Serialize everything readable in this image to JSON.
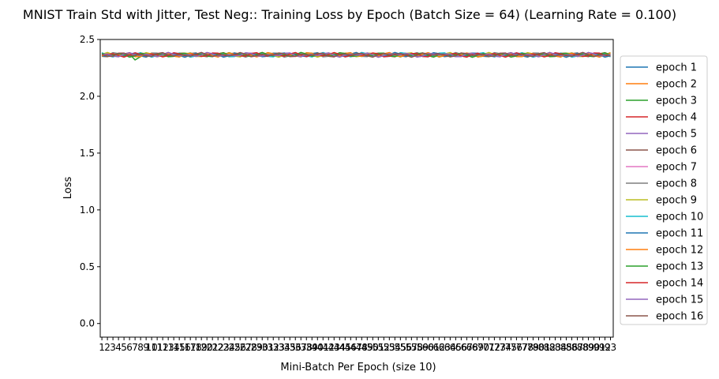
{
  "chart_data": {
    "type": "line",
    "title": "MNIST Train Std with Jitter, Test Neg:: Training Loss by Epoch (Batch Size = 64) (Learning Rate = 0.100)",
    "xlabel": "Mini-Batch Per Epoch (size 10)",
    "ylabel": "Loss",
    "x": [
      1,
      2,
      3,
      4,
      5,
      6,
      7,
      8,
      9,
      10,
      11,
      12,
      13,
      14,
      15,
      16,
      17,
      18,
      19,
      20,
      21,
      22,
      23,
      24,
      25,
      26,
      27,
      28,
      29,
      30,
      31,
      32,
      33,
      34,
      35,
      36,
      37,
      38,
      39,
      40,
      41,
      42,
      43,
      44,
      45,
      46,
      47,
      48,
      49,
      50,
      51,
      52,
      53,
      54,
      55,
      56,
      57,
      58,
      59,
      60,
      61,
      62,
      63,
      64,
      65,
      66,
      67,
      68,
      69,
      70,
      71,
      72,
      73,
      74,
      75,
      76,
      77,
      78,
      79,
      80,
      81,
      82,
      83,
      84,
      85,
      86,
      87,
      88,
      89,
      90,
      91,
      92,
      93
    ],
    "xlim": [
      0.7,
      93.5
    ],
    "ylim": [
      -0.12,
      2.5
    ],
    "yticks": [
      0.0,
      0.5,
      1.0,
      1.5,
      2.0,
      2.5
    ],
    "ytick_labels": [
      "0.0",
      "0.5",
      "1.0",
      "1.5",
      "2.0",
      "2.5"
    ],
    "series_base": 2.365,
    "legend_position": "outside-right",
    "grid": false,
    "series": [
      {
        "name": "epoch 1",
        "color": "#1f77b4"
      },
      {
        "name": "epoch 2",
        "color": "#ff7f0e"
      },
      {
        "name": "epoch 3",
        "color": "#2ca02c"
      },
      {
        "name": "epoch 4",
        "color": "#d62728"
      },
      {
        "name": "epoch 5",
        "color": "#9467bd"
      },
      {
        "name": "epoch 6",
        "color": "#8c564b"
      },
      {
        "name": "epoch 7",
        "color": "#e377c2"
      },
      {
        "name": "epoch 8",
        "color": "#7f7f7f"
      },
      {
        "name": "epoch 9",
        "color": "#bcbd22"
      },
      {
        "name": "epoch 10",
        "color": "#17becf"
      },
      {
        "name": "epoch 11",
        "color": "#1f77b4"
      },
      {
        "name": "epoch 12",
        "color": "#ff7f0e"
      },
      {
        "name": "epoch 13",
        "color": "#2ca02c"
      },
      {
        "name": "epoch 14",
        "color": "#d62728"
      },
      {
        "name": "epoch 15",
        "color": "#9467bd"
      },
      {
        "name": "epoch 16",
        "color": "#8c564b"
      }
    ]
  }
}
